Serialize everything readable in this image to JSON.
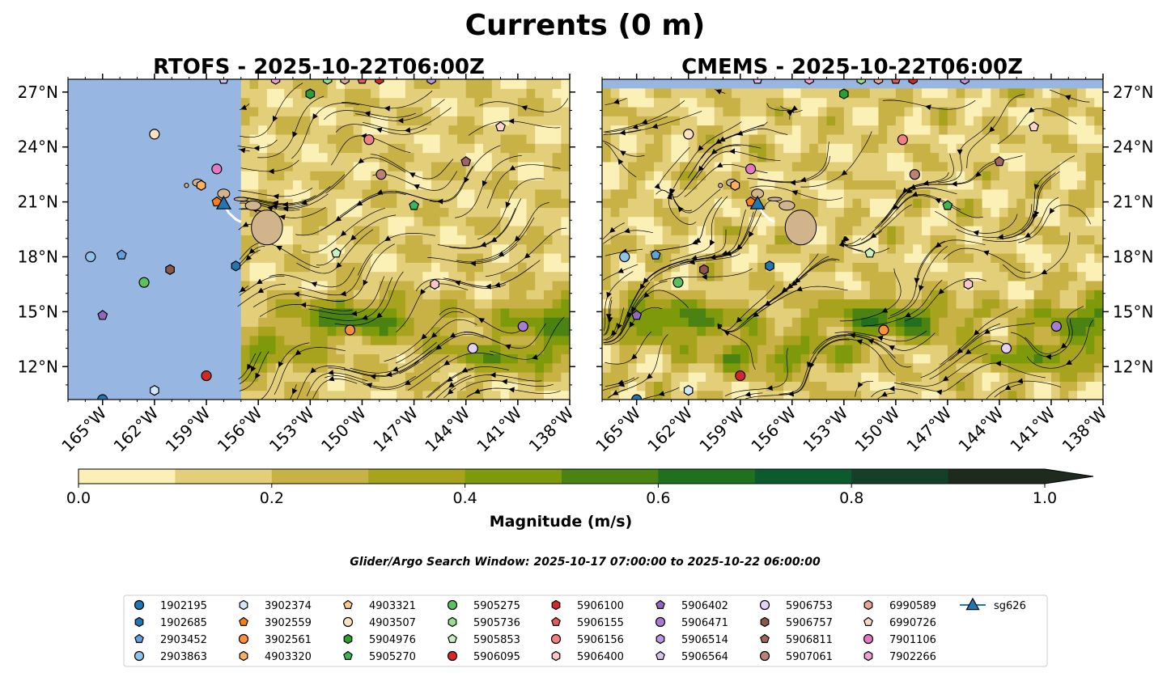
{
  "title": "Currents (0 m)",
  "subtitle": "Glider/Argo Search Window: 2025-10-17 07:00:00 to 2025-10-22 06:00:00",
  "panels": [
    {
      "title": "RTOFS - 2025-10-22T06:00Z",
      "model": "RTOFS"
    },
    {
      "title": "CMEMS - 2025-10-22T06:00Z",
      "model": "CMEMS"
    }
  ],
  "colors": {
    "land": "#d2b48c",
    "ocean_nodata": "#97b6e2",
    "streamline": "#000000",
    "glider_track": "#ffffff"
  },
  "chart_data": {
    "type": "heatmap",
    "variable": "Current speed with streamlines",
    "depth": "0 m",
    "x_axis": {
      "range": [
        -167,
        -138
      ],
      "ticks": [
        -165,
        -162,
        -159,
        -156,
        -153,
        -150,
        -147,
        -144,
        -141,
        -138
      ],
      "tick_labels": [
        "165°W",
        "162°W",
        "159°W",
        "156°W",
        "153°W",
        "150°W",
        "147°W",
        "144°W",
        "141°W",
        "138°W"
      ]
    },
    "y_axis": {
      "range": [
        10.2,
        27.7
      ],
      "ticks": [
        12,
        15,
        18,
        21,
        24,
        27
      ],
      "tick_labels": [
        "12°N",
        "15°N",
        "18°N",
        "21°N",
        "24°N",
        "27°N"
      ]
    },
    "colorbar": {
      "label": "Magnitude (m/s)",
      "range": [
        0,
        1.0
      ],
      "levels": [
        0,
        0.1,
        0.2,
        0.3,
        0.4,
        0.5,
        0.6,
        0.7,
        0.8,
        0.9,
        1.0
      ],
      "tick_values": [
        0,
        0.2,
        0.4,
        0.6,
        0.8,
        1.0
      ],
      "tick_labels": [
        "0.0",
        "0.2",
        "0.4",
        "0.6",
        "0.8",
        "1.0"
      ],
      "colors": [
        "#fbf0b6",
        "#e3cf7a",
        "#c8b246",
        "#a8a31d",
        "#7e9a0b",
        "#4a8312",
        "#21701f",
        "#0c5a2e",
        "#153f28",
        "#1e2a1e"
      ],
      "extend": "max"
    },
    "rtofs_data_lon_min": -157.2,
    "cmems_data_lat_max": 27.2,
    "land": [
      {
        "name": "Hawaii (Big Island)",
        "lon": -155.5,
        "lat": 19.6,
        "rx": 0.9,
        "ry": 0.95
      },
      {
        "name": "Maui",
        "lon": -156.3,
        "lat": 20.8,
        "rx": 0.45,
        "ry": 0.25
      },
      {
        "name": "Molokai",
        "lon": -157.0,
        "lat": 21.15,
        "rx": 0.4,
        "ry": 0.1
      },
      {
        "name": "Oahu",
        "lon": -158.0,
        "lat": 21.45,
        "rx": 0.35,
        "ry": 0.25
      },
      {
        "name": "Kauai",
        "lon": -159.5,
        "lat": 22.05,
        "rx": 0.3,
        "ry": 0.2
      },
      {
        "name": "Niihau",
        "lon": -160.15,
        "lat": 21.9,
        "rx": 0.12,
        "ry": 0.12
      }
    ],
    "floats": [
      {
        "id": "1902195",
        "marker": "o",
        "color": "#1f77b4",
        "lon": -165.0,
        "lat": 10.2
      },
      {
        "id": "1902685",
        "marker": "h",
        "color": "#1f77b4",
        "lon": -157.3,
        "lat": 17.5
      },
      {
        "id": "2903452",
        "marker": "p",
        "color": "#5fa2dd",
        "lon": -163.9,
        "lat": 18.1
      },
      {
        "id": "2903863",
        "marker": "o",
        "color": "#8ec3ea",
        "lon": -165.7,
        "lat": 18.0
      },
      {
        "id": "3902374",
        "marker": "h",
        "color": "#cfe8f9",
        "lon": -162.0,
        "lat": 10.7
      },
      {
        "id": "3902559",
        "marker": "p",
        "color": "#ff7f0e",
        "lon": -158.4,
        "lat": 21.0
      },
      {
        "id": "3902561",
        "marker": "o",
        "color": "#ff8f3a",
        "lon": -150.7,
        "lat": 14.0
      },
      {
        "id": "4903320",
        "marker": "h",
        "color": "#ffae5c",
        "lon": -159.3,
        "lat": 21.9
      },
      {
        "id": "4903321",
        "marker": "p",
        "color": "#ffc98b",
        "lon": -158.0,
        "lat": 27.7
      },
      {
        "id": "4903507",
        "marker": "o",
        "color": "#ffe2c2",
        "lon": -162.0,
        "lat": 24.7
      },
      {
        "id": "5904976",
        "marker": "h",
        "color": "#2ca02c",
        "lon": -153.0,
        "lat": 26.9
      },
      {
        "id": "5905270",
        "marker": "p",
        "color": "#3cb84a",
        "lon": -147.0,
        "lat": 20.8
      },
      {
        "id": "5905275",
        "marker": "o",
        "color": "#5cc05e",
        "lon": -162.6,
        "lat": 16.6
      },
      {
        "id": "5905736",
        "marker": "h",
        "color": "#98df8a",
        "lon": -152.0,
        "lat": 27.7
      },
      {
        "id": "5905853",
        "marker": "p",
        "color": "#c8f1c0",
        "lon": -151.5,
        "lat": 18.2
      },
      {
        "id": "5906095",
        "marker": "o",
        "color": "#d62728",
        "lon": -159.0,
        "lat": 11.5
      },
      {
        "id": "5906100",
        "marker": "h",
        "color": "#d62728",
        "lon": -149.0,
        "lat": 27.7
      },
      {
        "id": "5906155",
        "marker": "p",
        "color": "#e8595a",
        "lon": -150.0,
        "lat": 27.7
      },
      {
        "id": "5906156",
        "marker": "o",
        "color": "#f28080",
        "lon": -149.6,
        "lat": 24.4
      },
      {
        "id": "5906400",
        "marker": "h",
        "color": "#fdc6c6",
        "lon": -145.8,
        "lat": 16.5
      },
      {
        "id": "5906402",
        "marker": "p",
        "color": "#9467bd",
        "lon": -165.0,
        "lat": 14.8
      },
      {
        "id": "5906471",
        "marker": "o",
        "color": "#a77dd1",
        "lon": -140.7,
        "lat": 14.2
      },
      {
        "id": "5906514",
        "marker": "h",
        "color": "#b89adf",
        "lon": -146.0,
        "lat": 27.7
      },
      {
        "id": "5906564",
        "marker": "p",
        "color": "#d6c2f0",
        "lon": -158.0,
        "lat": 27.7
      },
      {
        "id": "5906753",
        "marker": "o",
        "color": "#e2d2f7",
        "lon": -143.6,
        "lat": 13.0
      },
      {
        "id": "5906757",
        "marker": "h",
        "color": "#8c564b",
        "lon": -161.1,
        "lat": 17.3
      },
      {
        "id": "5906811",
        "marker": "p",
        "color": "#a0675c",
        "lon": -144.0,
        "lat": 23.2
      },
      {
        "id": "5907061",
        "marker": "o",
        "color": "#b98275",
        "lon": -148.9,
        "lat": 22.5
      },
      {
        "id": "6990589",
        "marker": "h",
        "color": "#e3a897",
        "lon": -151.0,
        "lat": 27.7
      },
      {
        "id": "6990726",
        "marker": "p",
        "color": "#fcd6c8",
        "lon": -142.0,
        "lat": 25.1
      },
      {
        "id": "7901106",
        "marker": "o",
        "color": "#e377c2",
        "lon": -158.4,
        "lat": 22.8
      },
      {
        "id": "7902266",
        "marker": "h",
        "color": "#f0a0d8",
        "lon": -155.0,
        "lat": 27.7
      },
      {
        "id": "sg626",
        "marker": "^",
        "color": "#1f77b4",
        "lon": -158.0,
        "lat": 20.9,
        "line": true
      }
    ],
    "glider_track": [
      [
        -158.0,
        20.9
      ],
      [
        -157.7,
        20.4
      ],
      [
        -157.3,
        20.05
      ],
      [
        -157.0,
        19.9
      ]
    ]
  }
}
